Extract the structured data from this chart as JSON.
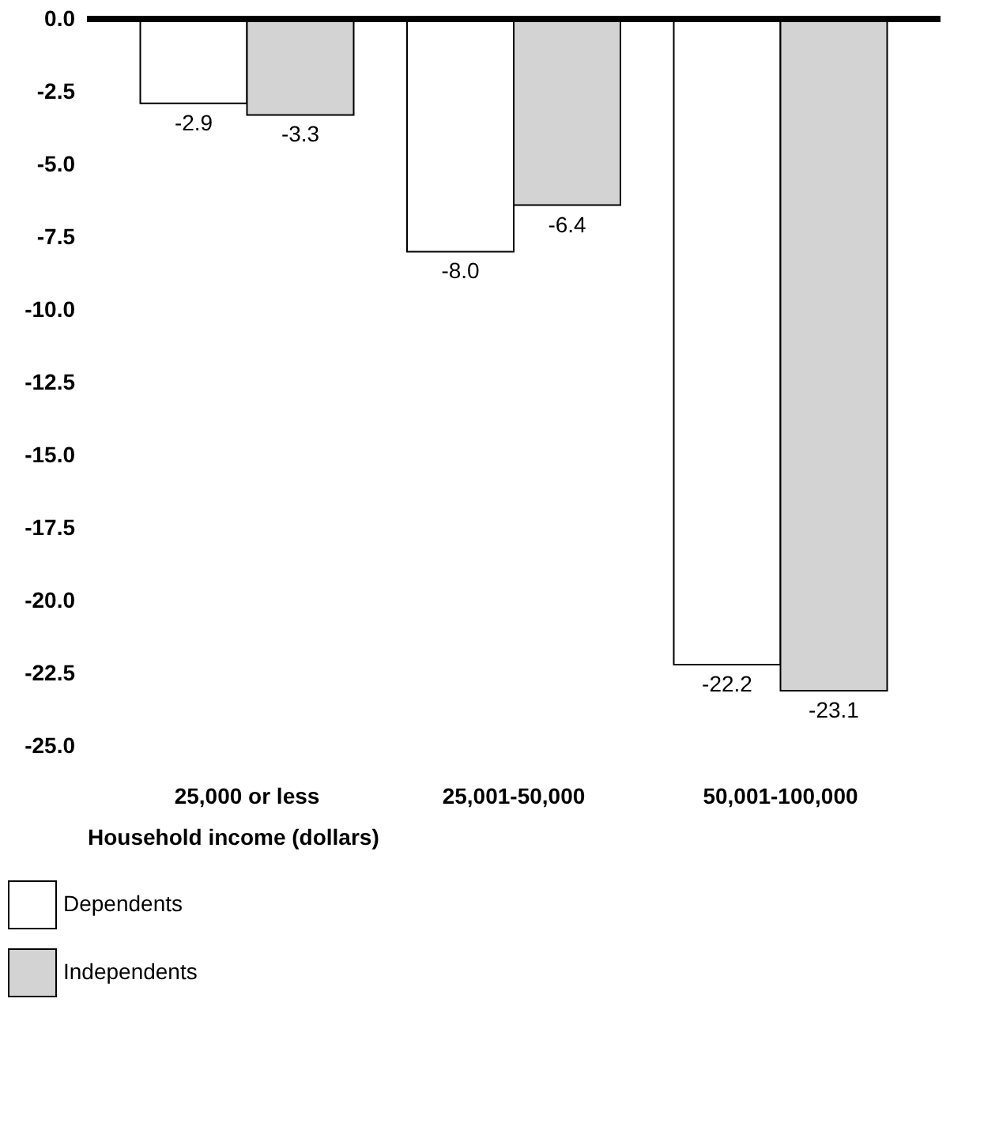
{
  "chart_data": {
    "type": "bar",
    "xlabel": "Household income (dollars)",
    "categories": [
      "25,000 or less",
      "25,001-50,000",
      "50,001-100,000"
    ],
    "series": [
      {
        "name": "Dependents",
        "color": "#ffffff",
        "values": [
          -2.9,
          -8.0,
          -22.2
        ],
        "value_labels": [
          "-2.9",
          "-8.0",
          "-22.2"
        ]
      },
      {
        "name": "Independents",
        "color": "#d3d3d3",
        "values": [
          -3.3,
          -6.4,
          -23.1
        ],
        "value_labels": [
          "-3.3",
          "-6.4",
          "-23.1"
        ]
      }
    ],
    "ylim": [
      -25,
      0
    ],
    "yticks": [
      {
        "value": 0,
        "label": "0.0"
      },
      -2.5,
      {
        "value": -5,
        "label": "-5.0"
      },
      -7.5,
      {
        "value": -10,
        "label": "-10.0"
      },
      -12.5,
      {
        "value": -15,
        "label": "-15.0"
      },
      -17.5,
      {
        "value": -20,
        "label": "-20.0"
      },
      -22.5,
      {
        "value": -25,
        "label": "-25.0"
      }
    ],
    "grid": false,
    "legend": "bottom left"
  }
}
